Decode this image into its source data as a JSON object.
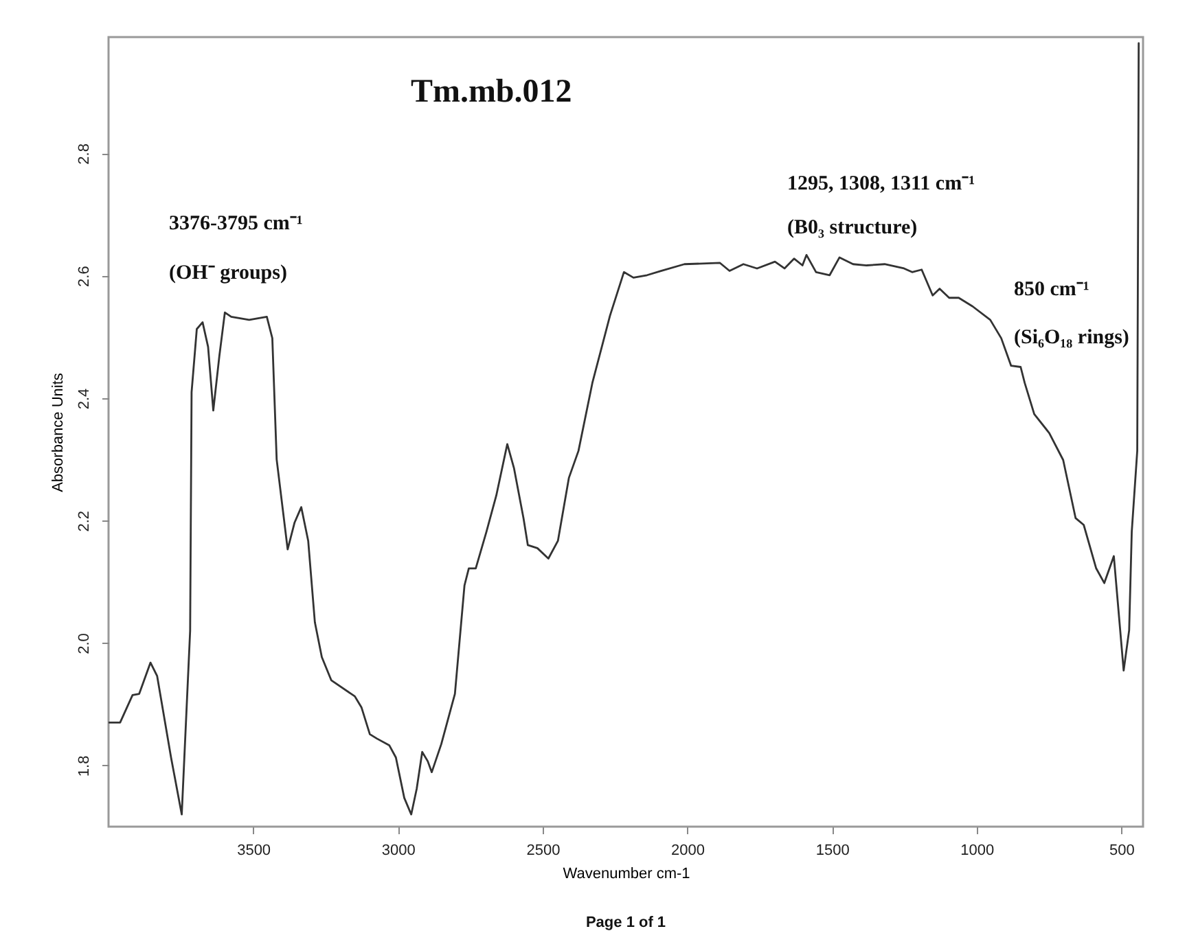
{
  "chart_data": {
    "type": "line",
    "title": "Tm.mb.012",
    "xlabel": "Wavenumber cm-1",
    "ylabel": "Absorbance Units",
    "x": [
      4000,
      3960,
      3917,
      3894,
      3855,
      3832,
      3784,
      3747,
      3718,
      3713,
      3695,
      3675,
      3656,
      3638,
      3617,
      3598,
      3576,
      3514,
      3453,
      3434,
      3419,
      3381,
      3357,
      3334,
      3310,
      3287,
      3263,
      3230,
      3149,
      3126,
      3097,
      3073,
      3030,
      3007,
      2978,
      2954,
      2935,
      2916,
      2897,
      2883,
      2850,
      2803,
      2770,
      2755,
      2731,
      2694,
      2660,
      2627,
      2622,
      2599,
      2566,
      2551,
      2518,
      2480,
      2447,
      2409,
      2376,
      2328,
      2267,
      2219,
      2186,
      2139,
      2091,
      2010,
      1887,
      1854,
      1806,
      1759,
      1697,
      1664,
      1631,
      1602,
      1588,
      1555,
      1508,
      1474,
      1427,
      1380,
      1318,
      1251,
      1223,
      1190,
      1152,
      1128,
      1095,
      1062,
      1014,
      953,
      915,
      881,
      848,
      834,
      801,
      749,
      701,
      658,
      630,
      587,
      559,
      526,
      492,
      473,
      464,
      445,
      440
    ],
    "series": [
      {
        "color": "#333333",
        "values": [
          1.87,
          1.87,
          1.915,
          1.917,
          1.968,
          1.946,
          1.813,
          1.72,
          2.02,
          2.41,
          2.513,
          2.524,
          2.484,
          2.38,
          2.469,
          2.54,
          2.533,
          2.528,
          2.533,
          2.498,
          2.3,
          2.153,
          2.197,
          2.222,
          2.167,
          2.034,
          1.977,
          1.939,
          1.913,
          1.895,
          1.851,
          1.844,
          1.833,
          1.813,
          1.747,
          1.72,
          1.762,
          1.822,
          1.807,
          1.789,
          1.835,
          1.917,
          2.094,
          2.122,
          2.122,
          2.182,
          2.241,
          2.314,
          2.325,
          2.286,
          2.204,
          2.16,
          2.155,
          2.138,
          2.167,
          2.27,
          2.314,
          2.425,
          2.535,
          2.606,
          2.597,
          2.601,
          2.608,
          2.619,
          2.621,
          2.608,
          2.619,
          2.612,
          2.623,
          2.612,
          2.628,
          2.617,
          2.634,
          2.606,
          2.601,
          2.63,
          2.619,
          2.617,
          2.619,
          2.612,
          2.606,
          2.61,
          2.568,
          2.579,
          2.564,
          2.564,
          2.55,
          2.528,
          2.498,
          2.453,
          2.451,
          2.425,
          2.374,
          2.343,
          2.299,
          2.204,
          2.193,
          2.122,
          2.098,
          2.142,
          1.955,
          2.021,
          2.182,
          2.314,
          2.98
        ]
      }
    ],
    "xlim": [
      4000,
      425
    ],
    "xticks": [
      3500,
      3000,
      2500,
      2000,
      1500,
      1000,
      500
    ],
    "ylim": [
      1.7,
      2.99
    ],
    "yticks": [
      1.8,
      {
        "value": 2.0,
        "label": "2.0"
      },
      2.2,
      2.4,
      2.6,
      2.8
    ],
    "annotations": [
      "3376-3795 cm⁻¹",
      "(OH⁻ groups)",
      "1295, 1308, 1311 cm⁻¹",
      "(B0₃ structure)",
      "850 cm⁻¹",
      "(Si₆O₁₈ rings)",
      "Page 1 of 1"
    ],
    "grid": false,
    "line_style": "solid",
    "marker": "none"
  }
}
